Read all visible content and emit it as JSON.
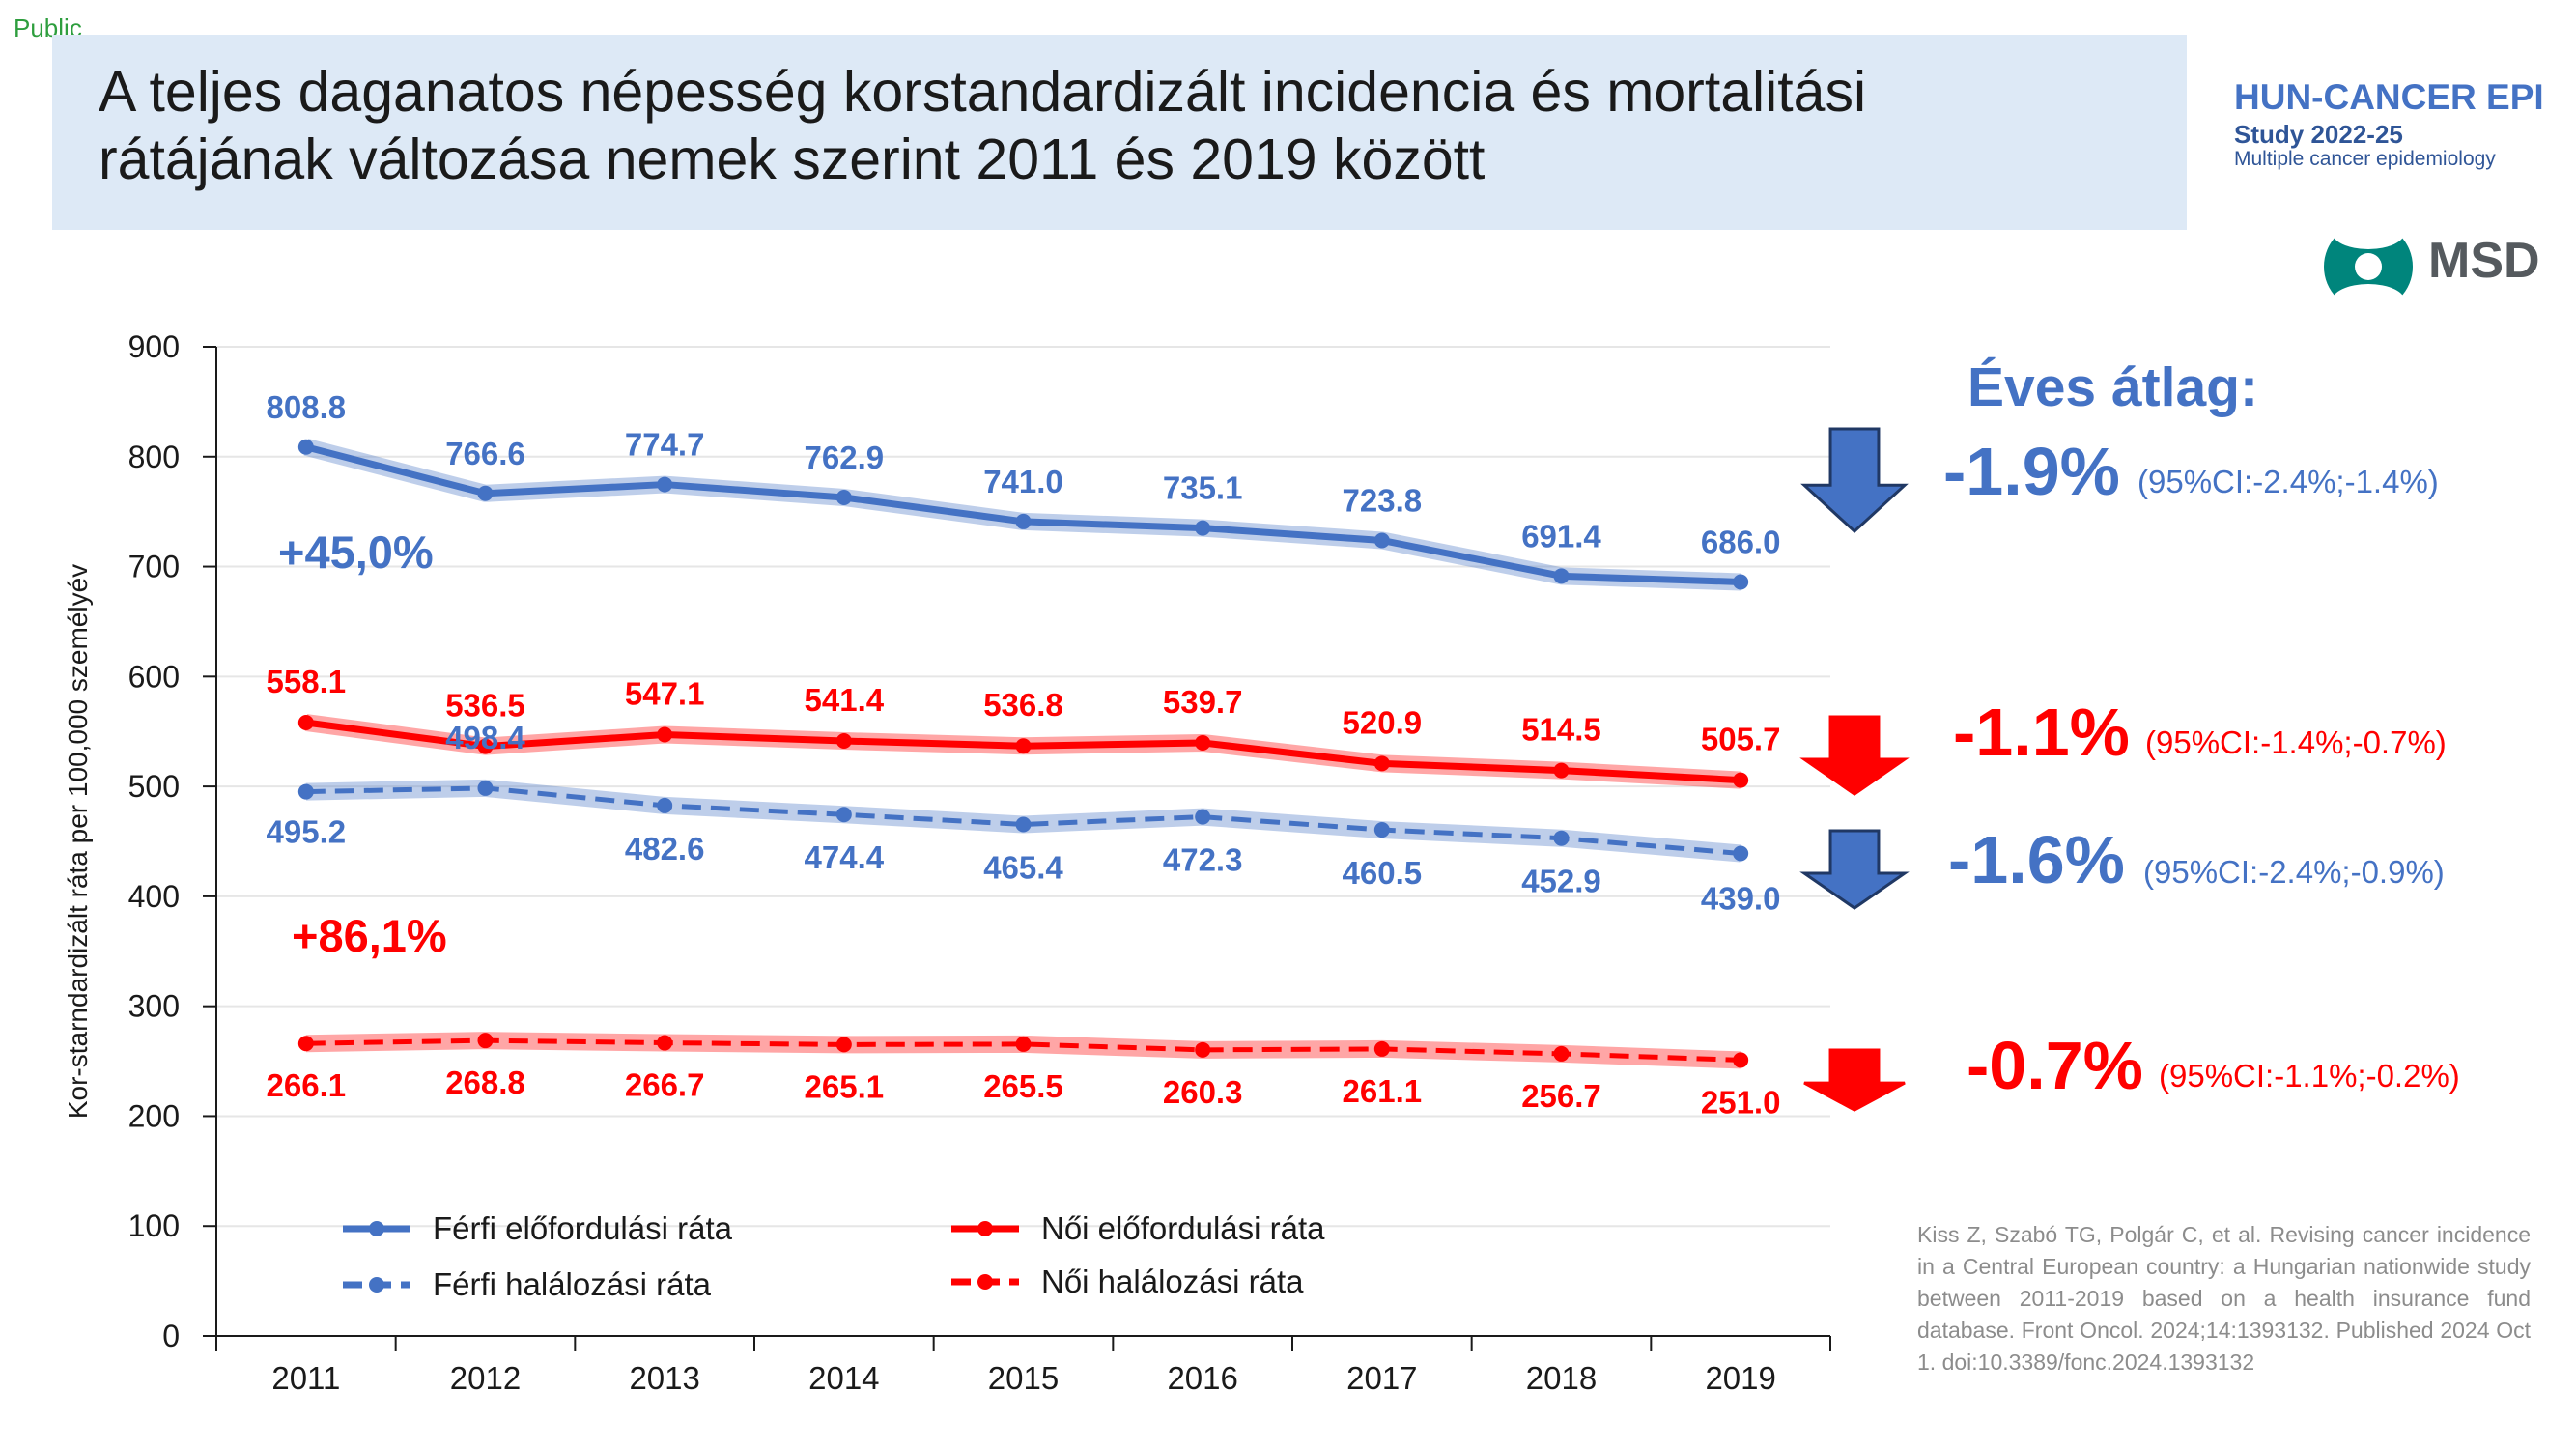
{
  "header": {
    "public_label": "Public",
    "title_line1": "A teljes daganatos népesség korstandardizált incidencia és mortalitási",
    "title_line2": "rátájának változása nemek szerint 2011 és 2019 között"
  },
  "logos": {
    "hun_cancer": "HUN-CANCER EPI",
    "study": "Study 2022-25",
    "subtitle": "Multiple cancer epidemiology",
    "msd": "MSD",
    "msd_icon": "msd-logo-icon"
  },
  "colors": {
    "blue": "#4472c4",
    "red": "#ff0000",
    "title_bg": "#dde9f6"
  },
  "chart_data": {
    "type": "line",
    "x": [
      2011,
      2012,
      2013,
      2014,
      2015,
      2016,
      2017,
      2018,
      2019
    ],
    "ylabel": "Kor-starndardizált ráta per 100,000 személyév",
    "ylim": [
      0,
      900
    ],
    "yticks": [
      0,
      100,
      200,
      300,
      400,
      500,
      600,
      700,
      800,
      900
    ],
    "grid": true,
    "legend_position": "bottom",
    "series": [
      {
        "name": "Férfi előfordulási ráta",
        "color": "#4472c4",
        "dash": false,
        "values": [
          808.8,
          766.6,
          774.7,
          762.9,
          741.0,
          735.1,
          723.8,
          691.4,
          686.0
        ],
        "labels": [
          "808.8",
          "766.6",
          "774.7",
          "762.9",
          "741.0",
          "735.1",
          "723.8",
          "691.4",
          "686.0"
        ]
      },
      {
        "name": "Férfi halálozási ráta",
        "color": "#4472c4",
        "dash": true,
        "values": [
          495.2,
          498.4,
          482.6,
          474.4,
          465.4,
          472.3,
          460.5,
          452.9,
          439.0
        ],
        "labels": [
          "495.2",
          "498.4",
          "482.6",
          "474.4",
          "465.4",
          "472.3",
          "460.5",
          "452.9",
          "439.0"
        ]
      },
      {
        "name": "Női előfordulási ráta",
        "color": "#ff0000",
        "dash": false,
        "values": [
          558.1,
          536.5,
          547.1,
          541.4,
          536.8,
          539.7,
          520.9,
          514.5,
          505.7
        ],
        "labels": [
          "558.1",
          "536.5",
          "547.1",
          "541.4",
          "536.8",
          "539.7",
          "520.9",
          "514.5",
          "505.7"
        ]
      },
      {
        "name": "Női halálozási ráta",
        "color": "#ff0000",
        "dash": true,
        "values": [
          266.1,
          268.8,
          266.7,
          265.1,
          265.5,
          260.3,
          261.1,
          256.7,
          251.0
        ],
        "labels": [
          "266.1",
          "268.8",
          "266.7",
          "265.1",
          "265.5",
          "260.3",
          "261.1",
          "256.7",
          "251.0"
        ]
      }
    ],
    "annotations": {
      "male_ratio": "+45,0%",
      "female_ratio": "+86,1%"
    }
  },
  "trend": {
    "heading": "Éves átlag:",
    "items": [
      {
        "pct": "-1.9%",
        "ci": "(95%CI:-2.4%;-1.4%)",
        "color": "#4472c4",
        "arrow": "blue-down-arrow-icon"
      },
      {
        "pct": "-1.1%",
        "ci": "(95%CI:-1.4%;-0.7%)",
        "color": "#ff0000",
        "arrow": "red-down-arrow-icon"
      },
      {
        "pct": "-1.6%",
        "ci": "(95%CI:-2.4%;-0.9%)",
        "color": "#4472c4",
        "arrow": "blue-down-arrow-icon"
      },
      {
        "pct": "-0.7%",
        "ci": "(95%CI:-1.1%;-0.2%)",
        "color": "#ff0000",
        "arrow": "red-down-arrow-icon"
      }
    ]
  },
  "citation": "Kiss Z, Szabó TG, Polgár C, et al. Revising cancer incidence in a Central European country: a Hungarian nationwide study between 2011-2019 based on a health insurance fund database. Front Oncol. 2024;14:1393132. Published 2024 Oct 1. doi:10.3389/fonc.2024.1393132"
}
